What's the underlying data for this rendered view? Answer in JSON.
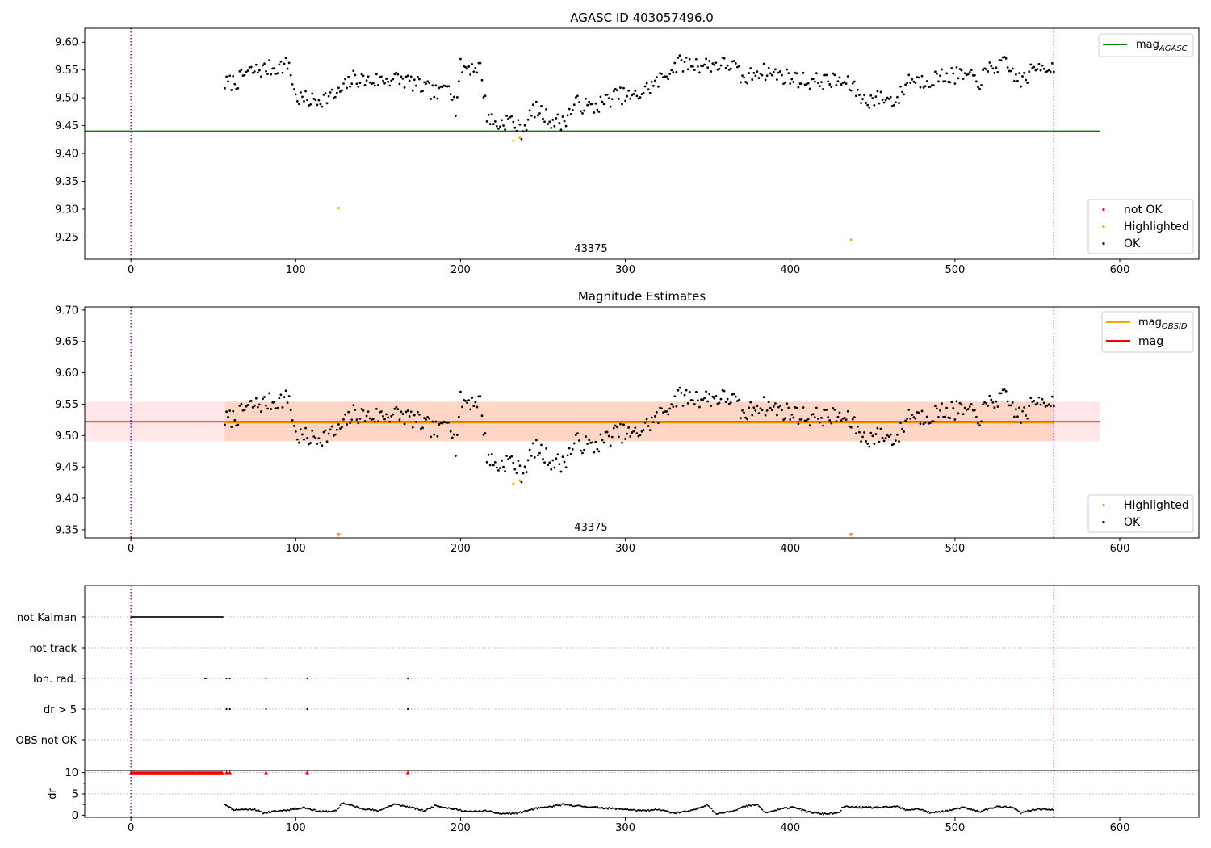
{
  "chart_data": [
    {
      "type": "scatter",
      "title": "AGASC ID 403057496.0",
      "xlabel": "",
      "ylabel": "",
      "xlim": [
        -28,
        648
      ],
      "ylim": [
        9.21,
        9.625
      ],
      "xticks": [
        0,
        100,
        200,
        300,
        400,
        500,
        600
      ],
      "yticks": [
        9.25,
        9.3,
        9.35,
        9.4,
        9.45,
        9.5,
        9.55,
        9.6
      ],
      "ytick_labels": [
        "9.25",
        "9.30",
        "9.35",
        "9.40",
        "9.45",
        "9.50",
        "9.55",
        "9.60"
      ],
      "vlines": [
        0,
        560
      ],
      "annotation": {
        "x": 280,
        "y": 9.225,
        "text": "43375"
      },
      "hlines": [
        {
          "name": "mag_AGASC",
          "y": 9.44,
          "x_range": [
            -28,
            588
          ],
          "color": "#008000"
        }
      ],
      "legend_top": {
        "placement": "top-right",
        "entries": [
          {
            "label_main": "mag",
            "label_sub": "AGASC",
            "color": "#008000"
          }
        ]
      },
      "legend_bottom": {
        "placement": "bottom-right",
        "entries": [
          {
            "label": "not OK",
            "color": "#ff0000"
          },
          {
            "label": "Highlighted",
            "color": "#ffa500"
          },
          {
            "label": "OK",
            "color": "#000000"
          }
        ]
      },
      "highlighted_points": [
        [
          126,
          9.302
        ],
        [
          232,
          9.423
        ],
        [
          236,
          9.428
        ],
        [
          437,
          9.245
        ]
      ],
      "ok_series_knots": [
        [
          57,
          9.525
        ],
        [
          65,
          9.53
        ],
        [
          70,
          9.545
        ],
        [
          78,
          9.55
        ],
        [
          88,
          9.555
        ],
        [
          96,
          9.56
        ],
        [
          100,
          9.5
        ],
        [
          110,
          9.495
        ],
        [
          125,
          9.505
        ],
        [
          135,
          9.535
        ],
        [
          145,
          9.53
        ],
        [
          160,
          9.535
        ],
        [
          168,
          9.53
        ],
        [
          180,
          9.515
        ],
        [
          187,
          9.505
        ],
        [
          193,
          9.535
        ],
        [
          197,
          9.48
        ],
        [
          200,
          9.555
        ],
        [
          212,
          9.555
        ],
        [
          216,
          9.47
        ],
        [
          222,
          9.45
        ],
        [
          230,
          9.462
        ],
        [
          237,
          9.44
        ],
        [
          245,
          9.48
        ],
        [
          255,
          9.46
        ],
        [
          262,
          9.455
        ],
        [
          270,
          9.49
        ],
        [
          280,
          9.482
        ],
        [
          295,
          9.505
        ],
        [
          305,
          9.5
        ],
        [
          320,
          9.53
        ],
        [
          332,
          9.562
        ],
        [
          345,
          9.56
        ],
        [
          365,
          9.56
        ],
        [
          372,
          9.53
        ],
        [
          380,
          9.55
        ],
        [
          395,
          9.54
        ],
        [
          410,
          9.53
        ],
        [
          430,
          9.53
        ],
        [
          438,
          9.52
        ],
        [
          445,
          9.495
        ],
        [
          455,
          9.5
        ],
        [
          465,
          9.495
        ],
        [
          472,
          9.535
        ],
        [
          480,
          9.53
        ],
        [
          495,
          9.54
        ],
        [
          505,
          9.54
        ],
        [
          515,
          9.53
        ],
        [
          522,
          9.555
        ],
        [
          530,
          9.56
        ],
        [
          540,
          9.53
        ],
        [
          552,
          9.56
        ],
        [
          558,
          9.555
        ]
      ]
    },
    {
      "type": "scatter",
      "title": "Magnitude Estimates",
      "xlabel": "",
      "ylabel": "",
      "xlim": [
        -28,
        648
      ],
      "ylim": [
        9.337,
        9.705
      ],
      "xticks": [
        0,
        100,
        200,
        300,
        400,
        500,
        600
      ],
      "yticks": [
        9.35,
        9.4,
        9.45,
        9.5,
        9.55,
        9.6,
        9.65,
        9.7
      ],
      "ytick_labels": [
        "9.35",
        "9.40",
        "9.45",
        "9.50",
        "9.55",
        "9.60",
        "9.65",
        "9.70"
      ],
      "vlines": [
        0,
        560
      ],
      "annotation": {
        "x": 280,
        "y": 9.347,
        "text": "43375"
      },
      "bands": [
        {
          "name": "mag band",
          "y0": 9.491,
          "y1": 9.554,
          "x_range": [
            -28,
            588
          ],
          "color": "#ffb6c1"
        },
        {
          "name": "mag_OBSID band",
          "y0": 9.491,
          "y1": 9.554,
          "x_range": [
            57,
            560
          ],
          "color": "#ffc8a8"
        }
      ],
      "hlines": [
        {
          "name": "mag_OBSID",
          "y": 9.522,
          "x_range": [
            57,
            560
          ],
          "color": "#ffa500"
        },
        {
          "name": "mag",
          "y": 9.522,
          "x_range": [
            -28,
            588
          ],
          "color": "#ff0000"
        }
      ],
      "legend_top": {
        "placement": "top-right",
        "entries": [
          {
            "label_main": "mag",
            "label_sub": "OBSID",
            "color": "#ffa500"
          },
          {
            "label_main": "mag",
            "label_sub": "",
            "color": "#ff0000"
          }
        ]
      },
      "legend_bottom": {
        "placement": "bottom-right",
        "entries": [
          {
            "label": "Highlighted",
            "color": "#ffa500"
          },
          {
            "label": "OK",
            "color": "#000000"
          }
        ]
      },
      "highlighted_points": [
        [
          232,
          9.423
        ],
        [
          236,
          9.428
        ]
      ],
      "highlighted_offscale_x": [
        126,
        437
      ]
    },
    {
      "type": "scatter",
      "title": "",
      "xlabel": "",
      "ylabel": "",
      "xlim": [
        -28,
        648
      ],
      "categories": [
        "not Kalman",
        "not track",
        "Ion. rad.",
        "dr > 5",
        "OBS not OK"
      ],
      "vlines": [
        0,
        560
      ],
      "flags": {
        "not Kalman": {
          "ranges": [
            [
              0,
              56
            ]
          ],
          "points": []
        },
        "not track": {
          "ranges": [],
          "points": []
        },
        "Ion. rad.": {
          "ranges": [],
          "points": [
            45,
            46,
            58,
            60,
            82,
            107,
            168
          ]
        },
        "dr > 5": {
          "ranges": [],
          "points": [
            58,
            60,
            82,
            107,
            168
          ]
        },
        "OBS not OK": {
          "ranges": [],
          "points": []
        }
      }
    },
    {
      "type": "scatter",
      "title": "",
      "xlabel": "",
      "ylabel": "dr",
      "xlim": [
        -28,
        648
      ],
      "ylim": [
        -0.5,
        10.5
      ],
      "yticks": [
        0,
        5,
        10
      ],
      "ytick_labels": [
        "0",
        "5",
        "10"
      ],
      "vlines": [
        0,
        560
      ],
      "clipped_at_10": {
        "ranges": [
          [
            0,
            56
          ]
        ],
        "points": [
          58,
          60,
          82,
          107,
          168
        ]
      },
      "dr_knots": [
        [
          57,
          2.6
        ],
        [
          62,
          1.3
        ],
        [
          75,
          1.4
        ],
        [
          80,
          0.5
        ],
        [
          90,
          1.0
        ],
        [
          100,
          1.5
        ],
        [
          105,
          1.8
        ],
        [
          115,
          0.8
        ],
        [
          125,
          1.0
        ],
        [
          128,
          2.9
        ],
        [
          140,
          1.6
        ],
        [
          150,
          1.0
        ],
        [
          160,
          2.6
        ],
        [
          170,
          1.8
        ],
        [
          178,
          1.0
        ],
        [
          185,
          2.3
        ],
        [
          195,
          1.5
        ],
        [
          205,
          0.8
        ],
        [
          215,
          1.0
        ],
        [
          225,
          0.3
        ],
        [
          235,
          0.5
        ],
        [
          245,
          1.5
        ],
        [
          255,
          2.0
        ],
        [
          262,
          2.5
        ],
        [
          270,
          2.2
        ],
        [
          280,
          1.9
        ],
        [
          290,
          1.6
        ],
        [
          300,
          1.4
        ],
        [
          310,
          1.0
        ],
        [
          320,
          1.3
        ],
        [
          330,
          0.5
        ],
        [
          340,
          1.0
        ],
        [
          350,
          2.5
        ],
        [
          355,
          0.3
        ],
        [
          365,
          1.0
        ],
        [
          372,
          2.0
        ],
        [
          380,
          2.5
        ],
        [
          385,
          0.5
        ],
        [
          395,
          1.5
        ],
        [
          402,
          2.0
        ],
        [
          410,
          0.8
        ],
        [
          420,
          0.3
        ],
        [
          430,
          0.5
        ],
        [
          432,
          2.0
        ],
        [
          445,
          1.8
        ],
        [
          455,
          1.8
        ],
        [
          465,
          2.0
        ],
        [
          470,
          1.2
        ],
        [
          478,
          1.5
        ],
        [
          485,
          0.5
        ],
        [
          495,
          1.0
        ],
        [
          505,
          1.8
        ],
        [
          515,
          0.8
        ],
        [
          525,
          2.0
        ],
        [
          535,
          1.8
        ],
        [
          540,
          0.5
        ],
        [
          550,
          1.5
        ],
        [
          560,
          1.2
        ]
      ]
    }
  ]
}
